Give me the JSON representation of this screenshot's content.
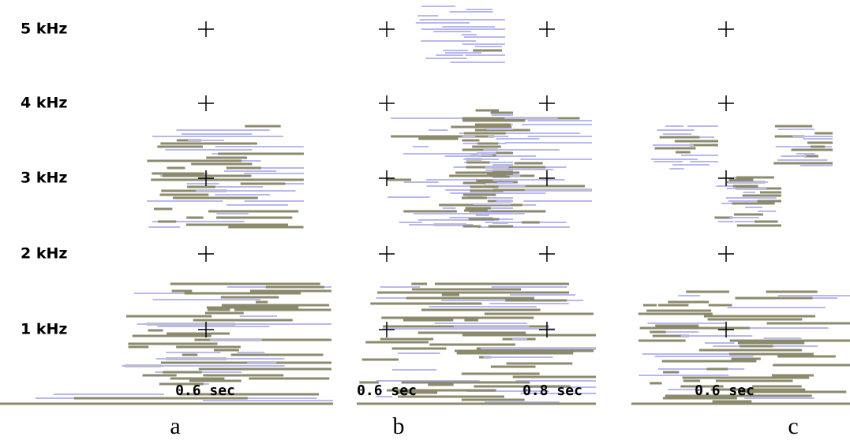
{
  "frequency_labels": [
    "5 kHz",
    "4 kHz",
    "3 kHz",
    "2 kHz",
    "1 kHz"
  ],
  "panels": [
    {
      "label": "a",
      "time_labels": [
        "0.6 sec"
      ]
    },
    {
      "label": "b",
      "time_labels": [
        "0.6 sec",
        "0.8 sec"
      ]
    },
    {
      "label": "c",
      "time_labels": [
        "0.6 sec"
      ]
    }
  ]
}
